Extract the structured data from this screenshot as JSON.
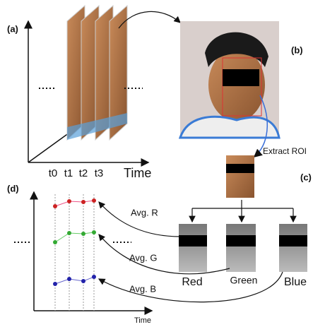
{
  "panels": {
    "a": {
      "label": "(a)",
      "time_labels": [
        "t0",
        "t1",
        "t2",
        "t3"
      ],
      "axis_label": "Time"
    },
    "b": {
      "label": "(b)",
      "arrow_label": "Extract ROI"
    },
    "c": {
      "label": "(c)",
      "channels": [
        "Red",
        "Green",
        "Blue"
      ]
    },
    "d": {
      "label": "(d)",
      "averages": [
        "Avg. R",
        "Avg. G",
        "Avg. B"
      ],
      "axis_label": "Time"
    }
  }
}
